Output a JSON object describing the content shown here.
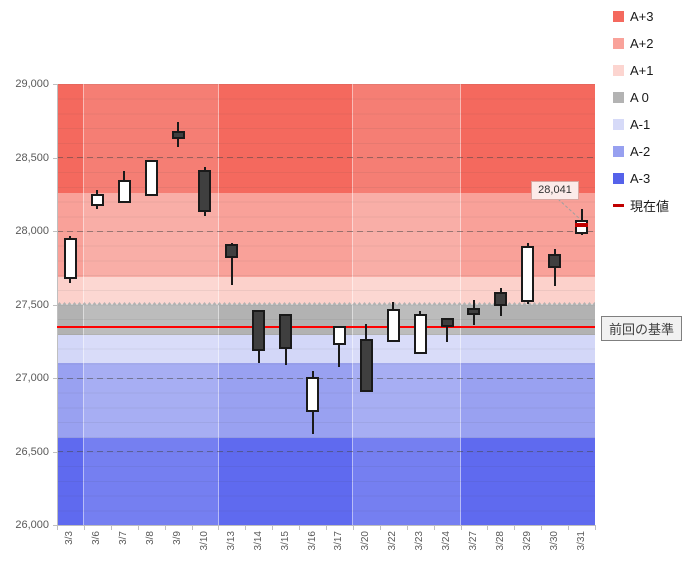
{
  "page": {
    "background": "#ffffff"
  },
  "legend": {
    "items": [
      {
        "label": "A+3",
        "color": "#f4695e",
        "swatch": "square"
      },
      {
        "label": "A+2",
        "color": "#f9a29a",
        "swatch": "square"
      },
      {
        "label": "A+1",
        "color": "#fcd5d0",
        "swatch": "square"
      },
      {
        "label": "A 0",
        "color": "#b3b3b3",
        "swatch": "square"
      },
      {
        "label": "A-1",
        "color": "#d6daf8",
        "swatch": "square"
      },
      {
        "label": "A-2",
        "color": "#97a0f0",
        "swatch": "square"
      },
      {
        "label": "A-3",
        "color": "#5562ea",
        "swatch": "square"
      },
      {
        "label": "現在値",
        "color": "#c00000",
        "swatch": "dash"
      }
    ]
  },
  "chart_data": {
    "type": "candlestick",
    "ylim": [
      26000,
      29000
    ],
    "ytick_step": 500,
    "ytick_labels": [
      "29,000",
      "28,500",
      "28,000",
      "27,500",
      "27,000",
      "26,500",
      "26,000"
    ],
    "categories": [
      "3/3",
      "3/6",
      "3/7",
      "3/8",
      "3/9",
      "3/10",
      "3/13",
      "3/14",
      "3/15",
      "3/16",
      "3/17",
      "3/20",
      "3/22",
      "3/23",
      "3/24",
      "3/27",
      "3/28",
      "3/29",
      "3/30",
      "3/31"
    ],
    "ohlc": [
      {
        "date": "3/3",
        "open": 27690,
        "high": 27965,
        "low": 27645,
        "close": 27940
      },
      {
        "date": "3/6",
        "open": 28185,
        "high": 28280,
        "low": 28150,
        "close": 28240
      },
      {
        "date": "3/7",
        "open": 28205,
        "high": 28410,
        "low": 28200,
        "close": 28330
      },
      {
        "date": "3/8",
        "open": 28250,
        "high": 28485,
        "low": 28245,
        "close": 28470
      },
      {
        "date": "3/9",
        "open": 28670,
        "high": 28740,
        "low": 28570,
        "close": 28640
      },
      {
        "date": "3/10",
        "open": 28400,
        "high": 28435,
        "low": 28105,
        "close": 28140
      },
      {
        "date": "3/13",
        "open": 27895,
        "high": 27915,
        "low": 27635,
        "close": 27830
      },
      {
        "date": "3/14",
        "open": 27450,
        "high": 27455,
        "low": 27100,
        "close": 27200
      },
      {
        "date": "3/15",
        "open": 27420,
        "high": 27430,
        "low": 27090,
        "close": 27210
      },
      {
        "date": "3/16",
        "open": 26780,
        "high": 27050,
        "low": 26620,
        "close": 26995
      },
      {
        "date": "3/17",
        "open": 27235,
        "high": 27340,
        "low": 27075,
        "close": 27340
      },
      {
        "date": "3/20",
        "open": 27250,
        "high": 27365,
        "low": 26915,
        "close": 26915
      },
      {
        "date": "3/22",
        "open": 27260,
        "high": 27515,
        "low": 27245,
        "close": 27455
      },
      {
        "date": "3/23",
        "open": 27180,
        "high": 27455,
        "low": 27160,
        "close": 27420
      },
      {
        "date": "3/24",
        "open": 27395,
        "high": 27405,
        "low": 27245,
        "close": 27360
      },
      {
        "date": "3/27",
        "open": 27460,
        "high": 27530,
        "low": 27360,
        "close": 27440
      },
      {
        "date": "3/28",
        "open": 27570,
        "high": 27610,
        "low": 27420,
        "close": 27500
      },
      {
        "date": "3/29",
        "open": 27530,
        "high": 27920,
        "low": 27500,
        "close": 27885
      },
      {
        "date": "3/30",
        "open": 27830,
        "high": 27875,
        "low": 27625,
        "close": 27760
      },
      {
        "date": "3/31",
        "open": 27995,
        "high": 28150,
        "low": 27975,
        "close": 28060
      }
    ],
    "zones": [
      {
        "label": "A+3",
        "from": 28260,
        "to": 29000,
        "color": "#f4695e"
      },
      {
        "label": "A+2",
        "from": 27690,
        "to": 28260,
        "color": "#f9a199"
      },
      {
        "label": "A+1",
        "from": 27500,
        "to": 27690,
        "color": "#fcd1cb"
      },
      {
        "label": "A 0",
        "from": 27290,
        "to": 27500,
        "color": "#b2b2b2"
      },
      {
        "label": "A-1",
        "from": 27100,
        "to": 27290,
        "color": "#d3d7f8"
      },
      {
        "label": "A-2",
        "from": 26590,
        "to": 27100,
        "color": "#99a1f1"
      },
      {
        "label": "A-3",
        "from": 26000,
        "to": 26590,
        "color": "#5f6aef"
      }
    ],
    "week_columns": [
      1,
      5,
      5,
      4,
      5
    ],
    "baseline": {
      "value": 27350,
      "label": "前回の基準",
      "color": "#ff0000"
    },
    "current": {
      "value": 28041,
      "label": "28,041",
      "date": "3/31",
      "marker_color": "#c00000"
    },
    "candle_up_color": "#ffffff",
    "candle_down_color": "#3f3f3f"
  }
}
